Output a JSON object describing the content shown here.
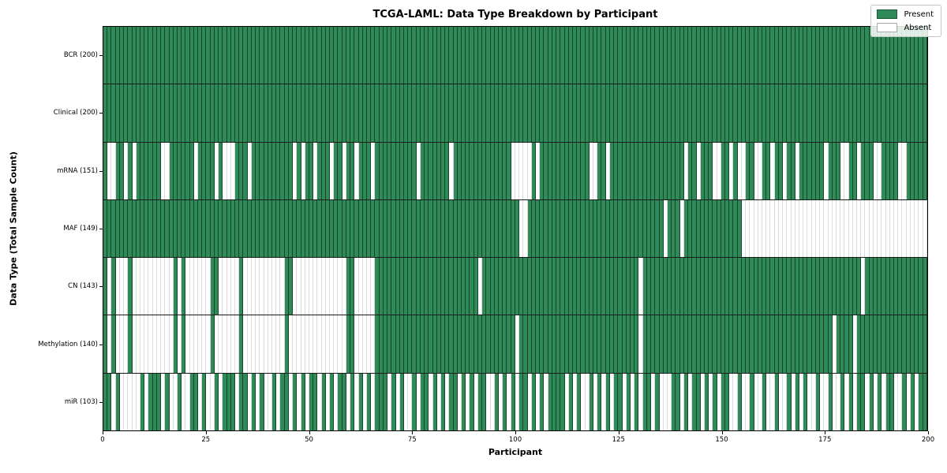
{
  "colors": {
    "present": "#2e8b57",
    "absent": "#ffffff",
    "cell_border_present": "rgba(0,0,0,0.50)",
    "cell_border_absent": "rgba(0,0,0,0.14)",
    "row_separator": "#1a1a1a",
    "axis": "#000000"
  },
  "chart_data": {
    "type": "heatmap",
    "title": "TCGA-LAML: Data Type Breakdown by Participant",
    "xlabel": "Participant",
    "ylabel": "Data Type (Total Sample Count)",
    "x_range": [
      0,
      200
    ],
    "n_participants": 200,
    "x_ticks": [
      0,
      25,
      50,
      75,
      100,
      125,
      150,
      175,
      200
    ],
    "grid": false,
    "legend_position": "upper right",
    "legend": [
      "Present",
      "Absent"
    ],
    "value_encoding": {
      "1": "Present",
      "0": "Absent"
    },
    "rows": [
      {
        "name": "BCR",
        "label": "BCR (200)",
        "present_count": 200,
        "pattern": "11111111111111111111111111111111111111111111111111111111111111111111111111111111111111111111111111111111111111111111111111111111111111111111111111111111111111111111111111111111111111111111111111111111"
      },
      {
        "name": "Clinical",
        "label": "Clinical (200)",
        "present_count": 200,
        "pattern": "11111111111111111111111111111111111111111111111111111111111111111111111111111111111111111111111111111111111111111111111111111111111111111111111111111111111111111111111111111111111111111111111111111111"
      },
      {
        "name": "mRNA",
        "label": "mRNA (151)",
        "present_count": 151,
        "pattern": "10011010111111001111110111101000111011111111110101101110110110111011111111110111111101111111111111100000101111111111110011011111111111111111101101110011010011001101101101111110111001101110011110011111"
      },
      {
        "name": "MAF",
        "label": "MAF (149)",
        "present_count": 149,
        "pattern": "11111111111111111111111111111111111111111111111111111111111111111111111111111111111111111111111111111001111111111111111111111111111111110111011111111111111000000000000000000000000000000000000000000000"
      },
      {
        "name": "CN",
        "label": "CN (143)",
        "present_count": 143,
        "pattern": "10100010000000000101000000110000010000000000110000000000000110000011111111111111111111111110111111111111111111111111111111111111110111111111111111111111111111111111111111111111111111110111111111111111"
      },
      {
        "name": "Methylation",
        "label": "Methylation (140)",
        "present_count": 140,
        "pattern": "10100010000000000101000000100000010000000000100000000000000110000011111111111111111111111111111111110111111111111111111111111111110111111111111111111111111111111111111111111111101111011111111111111111"
      },
      {
        "name": "miR",
        "label": "miR (103)",
        "present_count": 103,
        "pattern": "11010000010111010010011010010111011010100101101010110101011010101011101010010110101011010101100101010110101011110101001010101101010110100011010110101011001001001001001010100100100101011010101100101011"
      }
    ]
  }
}
